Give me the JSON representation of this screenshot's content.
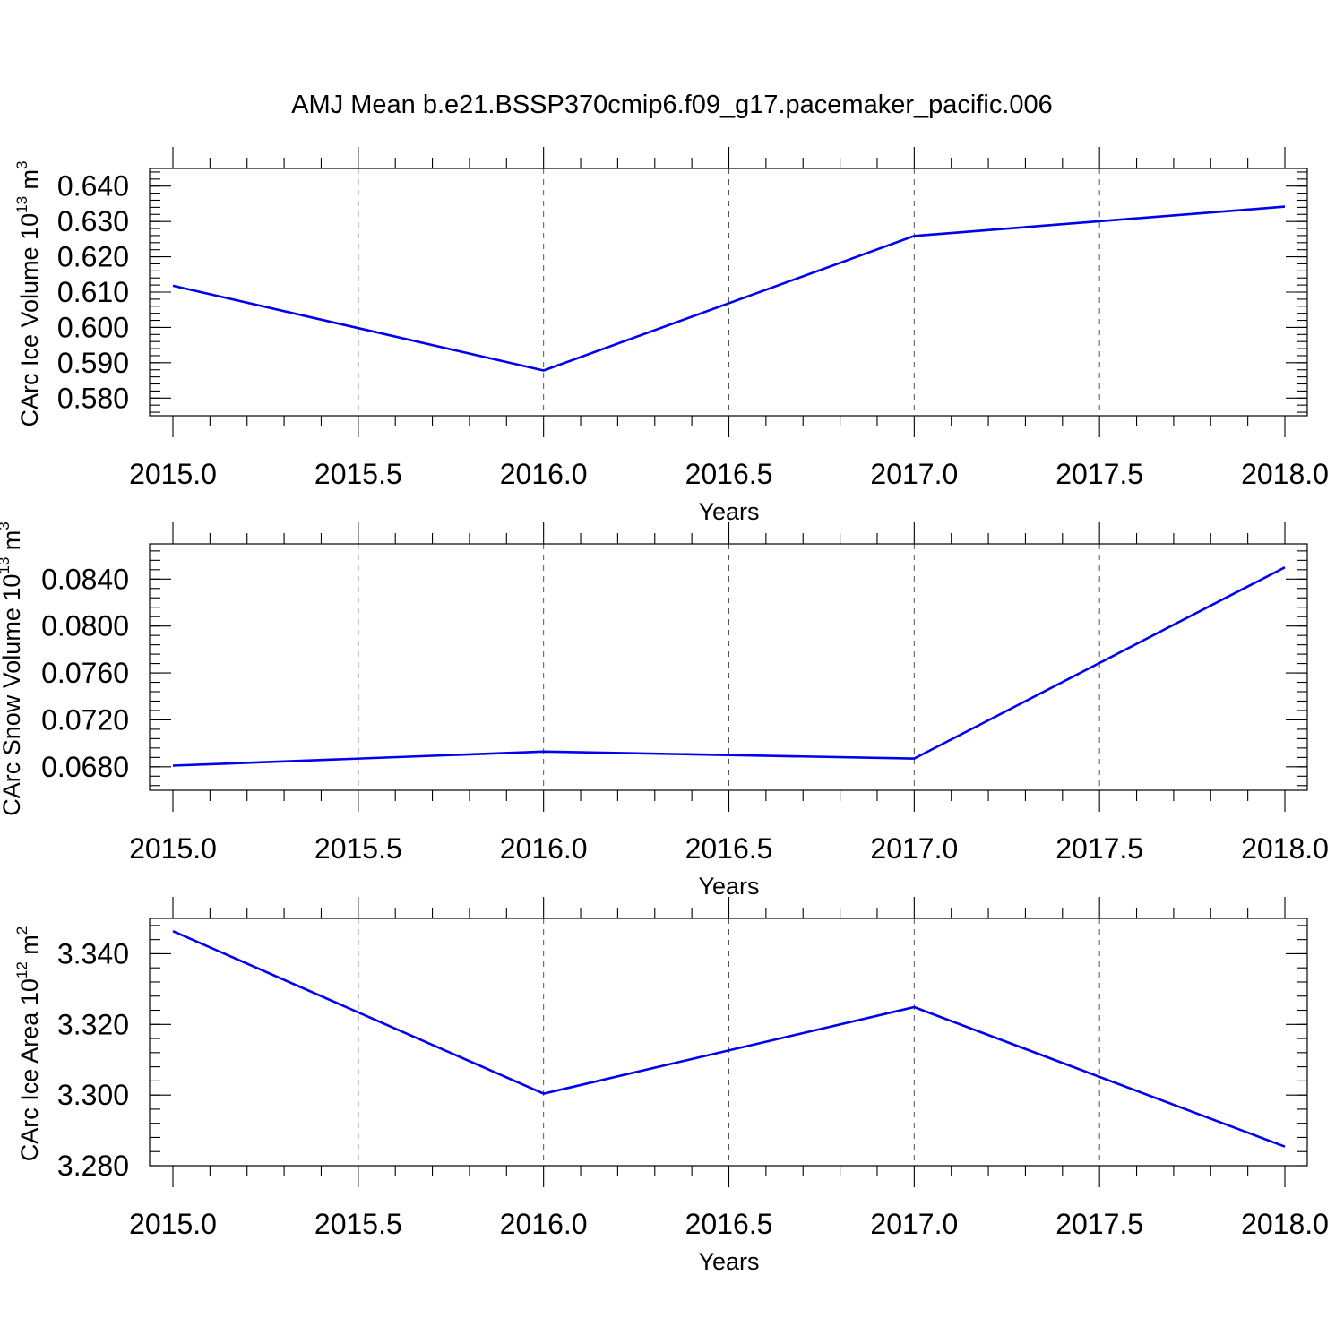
{
  "title": "AMJ Mean b.e21.BSSP370cmip6.f09_g17.pacemaker_pacific.006",
  "chart_data": [
    {
      "type": "line",
      "ylabel": {
        "main": "CArc Ice Volume 10",
        "exp": "13",
        "unit": " m",
        "unit_exp": "3"
      },
      "xlabel": "Years",
      "xlim": [
        2015.0,
        2018.0
      ],
      "ylim": [
        0.575,
        0.645
      ],
      "xticks": [
        "2015.0",
        "2015.5",
        "2016.0",
        "2016.5",
        "2017.0",
        "2017.5",
        "2018.0"
      ],
      "yticks": [
        "0.580",
        "0.590",
        "0.600",
        "0.610",
        "0.620",
        "0.630",
        "0.640"
      ],
      "y_minor_step": 0.002,
      "grid": "x-dashed",
      "color": "#0000ee",
      "x": [
        2015.0,
        2016.0,
        2017.0,
        2018.0
      ],
      "y": [
        0.6118,
        0.5878,
        0.6259,
        0.6342
      ]
    },
    {
      "type": "line",
      "ylabel": {
        "main": "CArc Snow Volume 10",
        "exp": "13",
        "unit": " m",
        "unit_exp": "3"
      },
      "xlabel": "Years",
      "xlim": [
        2015.0,
        2018.0
      ],
      "ylim": [
        0.066,
        0.087
      ],
      "xticks": [
        "2015.0",
        "2015.5",
        "2016.0",
        "2016.5",
        "2017.0",
        "2017.5",
        "2018.0"
      ],
      "yticks": [
        "0.0680",
        "0.0720",
        "0.0760",
        "0.0800",
        "0.0840"
      ],
      "y_minor_step": 0.0008,
      "grid": "x-dashed",
      "color": "#0000ee",
      "x": [
        2015.0,
        2016.0,
        2017.0,
        2018.0
      ],
      "y": [
        0.0681,
        0.0693,
        0.0687,
        0.085
      ]
    },
    {
      "type": "line",
      "ylabel": {
        "main": "CArc Ice Area 10",
        "exp": "12",
        "unit": " m",
        "unit_exp": "2"
      },
      "xlabel": "Years",
      "xlim": [
        2015.0,
        2018.0
      ],
      "ylim": [
        3.28,
        3.35
      ],
      "xticks": [
        "2015.0",
        "2015.5",
        "2016.0",
        "2016.5",
        "2017.0",
        "2017.5",
        "2018.0"
      ],
      "yticks": [
        "3.280",
        "3.300",
        "3.320",
        "3.340"
      ],
      "y_minor_step": 0.004,
      "grid": "x-dashed",
      "color": "#0000ee",
      "x": [
        2015.0,
        2016.0,
        2017.0,
        2018.0
      ],
      "y": [
        3.3464,
        3.3004,
        3.3249,
        3.2854
      ]
    }
  ]
}
